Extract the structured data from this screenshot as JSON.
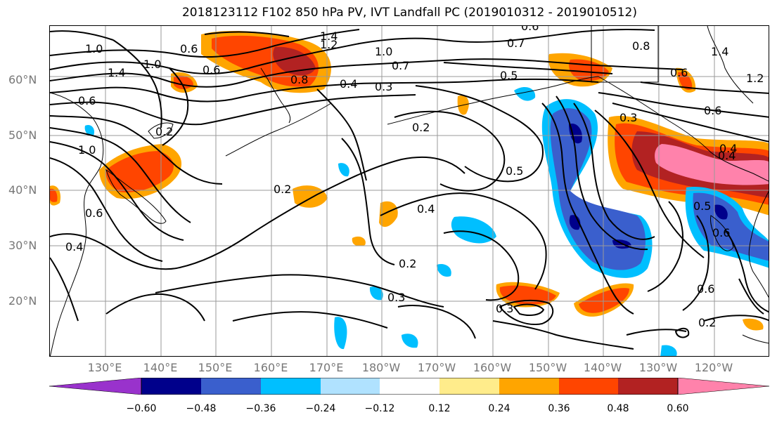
{
  "title": "2018123112 F102 850 hPa PV, IVT Landfall PC (2019010312 - 2019010512)",
  "lat_labels": [
    "60°N",
    "50°N",
    "40°N",
    "30°N",
    "20°N"
  ],
  "lon_labels": [
    "130°E",
    "140°E",
    "150°E",
    "160°E",
    "170°E",
    "180°W",
    "170°W",
    "160°W",
    "150°W",
    "140°W",
    "130°W",
    "120°W"
  ],
  "colorbar": {
    "colors": [
      "#9932cc",
      "#00008b",
      "#3a5fcd",
      "#00bfff",
      "#b0e2ff",
      "#ffffff",
      "#ffec8b",
      "#ffa500",
      "#ff4500",
      "#b22222",
      "#ff82ab"
    ],
    "ticks": [
      "−0.60",
      "−0.48",
      "−0.36",
      "−0.24",
      "−0.12",
      "0.12",
      "0.24",
      "0.36",
      "0.48",
      "0.60"
    ]
  },
  "contour_labels": [
    "1.4",
    "1.2",
    "1.0",
    "0.6",
    "1.0",
    "1.4",
    "0.6",
    "1.0",
    "0.7",
    "0.6",
    "0.8",
    "0.4",
    "0.3",
    "0.5",
    "0.7",
    "0.6",
    "0.8",
    "1.4",
    "1.2",
    "0.6",
    "0.6",
    "0.3",
    "0.4",
    "0.2",
    "0.5",
    "0.2",
    "0.4",
    "0.2",
    "0.3",
    "0.3",
    "0.5",
    "0.6",
    "0.6",
    "0.2",
    "0.4",
    "1.0",
    "0.4",
    "0.6",
    "0.2"
  ]
}
